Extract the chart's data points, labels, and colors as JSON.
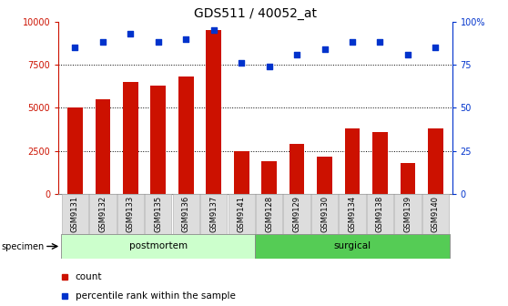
{
  "title": "GDS511 / 40052_at",
  "categories": [
    "GSM9131",
    "GSM9132",
    "GSM9133",
    "GSM9135",
    "GSM9136",
    "GSM9137",
    "GSM9141",
    "GSM9128",
    "GSM9129",
    "GSM9130",
    "GSM9134",
    "GSM9138",
    "GSM9139",
    "GSM9140"
  ],
  "counts": [
    5000,
    5500,
    6500,
    6300,
    6800,
    9500,
    2500,
    1900,
    2900,
    2200,
    3800,
    3600,
    1800,
    3800
  ],
  "percentiles": [
    85,
    88,
    93,
    88,
    90,
    95,
    76,
    74,
    81,
    84,
    88,
    88,
    81,
    85
  ],
  "bar_color": "#cc1100",
  "dot_color": "#0033cc",
  "left_ylim": [
    0,
    10000
  ],
  "right_ylim": [
    0,
    100
  ],
  "left_yticks": [
    0,
    2500,
    5000,
    7500,
    10000
  ],
  "left_yticklabels": [
    "0",
    "2500",
    "5000",
    "7500",
    "10000"
  ],
  "right_yticks": [
    0,
    25,
    50,
    75,
    100
  ],
  "right_yticklabels": [
    "0",
    "25",
    "50",
    "75",
    "100%"
  ],
  "grid_values": [
    2500,
    5000,
    7500
  ],
  "postmortem_count": 7,
  "postmortem_label": "postmortem",
  "surgical_label": "surgical",
  "postmortem_color": "#ccffcc",
  "surgical_color": "#55cc55",
  "specimen_label": "specimen",
  "legend_count_label": "count",
  "legend_percentile_label": "percentile rank within the sample",
  "left_axis_color": "#cc1100",
  "right_axis_color": "#0033cc",
  "title_fontsize": 10,
  "tick_fontsize": 7,
  "bar_width": 0.55
}
